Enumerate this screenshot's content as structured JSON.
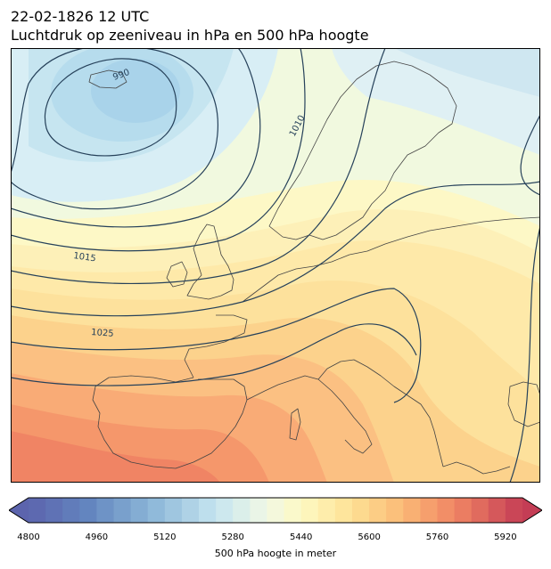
{
  "header": {
    "datetime": "22-02-1826 12 UTC",
    "subtitle": "Luchtdruk op zeeniveau in hPa en 500 hPa hoogte"
  },
  "map": {
    "region": "Europe and North Atlantic",
    "fill_field": "500 hPa geopotential height (m)",
    "contour_field": "Sea level pressure (hPa)",
    "isobar_labels": [
      "990",
      "1010",
      "1015",
      "1025"
    ],
    "low_pressure_centre": "west of Scandinavia / north of Scotland",
    "high_pressure_area": "south-west, Iberia"
  },
  "colorbar": {
    "label": "500 hPa hoogte in meter",
    "ticks": [
      "4800",
      "4960",
      "5120",
      "5280",
      "5440",
      "5600",
      "5760",
      "5920"
    ],
    "min": 4800,
    "max": 5960,
    "step": 40,
    "extend": "both",
    "colormap": "RdYlBu_r"
  }
}
